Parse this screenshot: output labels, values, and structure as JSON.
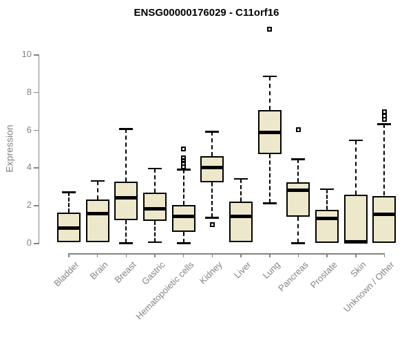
{
  "page": {
    "background": "#ffffff"
  },
  "chart_data": {
    "type": "boxplot",
    "title": "ENSG00000176029 - C11orf16",
    "ylabel": "Expression",
    "xlabel": "",
    "ylim": [
      0,
      10
    ],
    "y_ticks": [
      0,
      2,
      4,
      6,
      8,
      10
    ],
    "grid": false,
    "legend": "none",
    "colors": {
      "box_fill": "#EDE8CC",
      "box_border": "#000000",
      "median": "#000000",
      "axis": "#828282",
      "tick_label": "#828282",
      "title": "#000000"
    },
    "categories": [
      "Bladder",
      "Brain",
      "Breast",
      "Gastric",
      "Hematopoietic cells",
      "Kidney",
      "Liver",
      "Lung",
      "Pancreas",
      "Prostate",
      "Skin",
      "Unknown / Other"
    ],
    "series": [
      {
        "name": "Bladder",
        "min": 0.05,
        "q1": 0.05,
        "median": 0.8,
        "q3": 1.6,
        "max": 2.7,
        "outliers": []
      },
      {
        "name": "Brain",
        "min": 0.05,
        "q1": 0.05,
        "median": 1.55,
        "q3": 2.3,
        "max": 3.3,
        "outliers": []
      },
      {
        "name": "Breast",
        "min": 0.0,
        "q1": 1.2,
        "median": 2.4,
        "q3": 3.25,
        "max": 6.05,
        "outliers": []
      },
      {
        "name": "Gastric",
        "min": 0.05,
        "q1": 1.15,
        "median": 1.8,
        "q3": 2.65,
        "max": 3.95,
        "outliers": []
      },
      {
        "name": "Hematopoietic cells",
        "min": 0.0,
        "q1": 0.6,
        "median": 1.4,
        "q3": 2.0,
        "max": 3.9,
        "outliers": [
          4.05,
          4.2,
          4.35,
          4.5,
          5.0
        ]
      },
      {
        "name": "Kidney",
        "min": 1.35,
        "q1": 3.2,
        "median": 4.0,
        "q3": 4.6,
        "max": 5.9,
        "outliers": [
          0.95
        ]
      },
      {
        "name": "Liver",
        "min": 0.05,
        "q1": 0.05,
        "median": 1.4,
        "q3": 2.2,
        "max": 3.4,
        "outliers": []
      },
      {
        "name": "Lung",
        "min": 2.1,
        "q1": 4.7,
        "median": 5.85,
        "q3": 7.05,
        "max": 8.85,
        "outliers": [
          11.35
        ]
      },
      {
        "name": "Pancreas",
        "min": 0.0,
        "q1": 1.4,
        "median": 2.8,
        "q3": 3.2,
        "max": 4.45,
        "outliers": [
          6.0
        ]
      },
      {
        "name": "Prostate",
        "min": 0.0,
        "q1": 0.0,
        "median": 1.3,
        "q3": 1.75,
        "max": 2.85,
        "outliers": []
      },
      {
        "name": "Skin",
        "min": 0.0,
        "q1": 0.0,
        "median": 0.05,
        "q3": 2.55,
        "max": 5.45,
        "outliers": []
      },
      {
        "name": "Unknown / Other",
        "min": 0.0,
        "q1": 0.0,
        "median": 1.5,
        "q3": 2.5,
        "max": 6.3,
        "outliers": [
          6.55,
          6.75,
          6.95
        ]
      }
    ]
  }
}
